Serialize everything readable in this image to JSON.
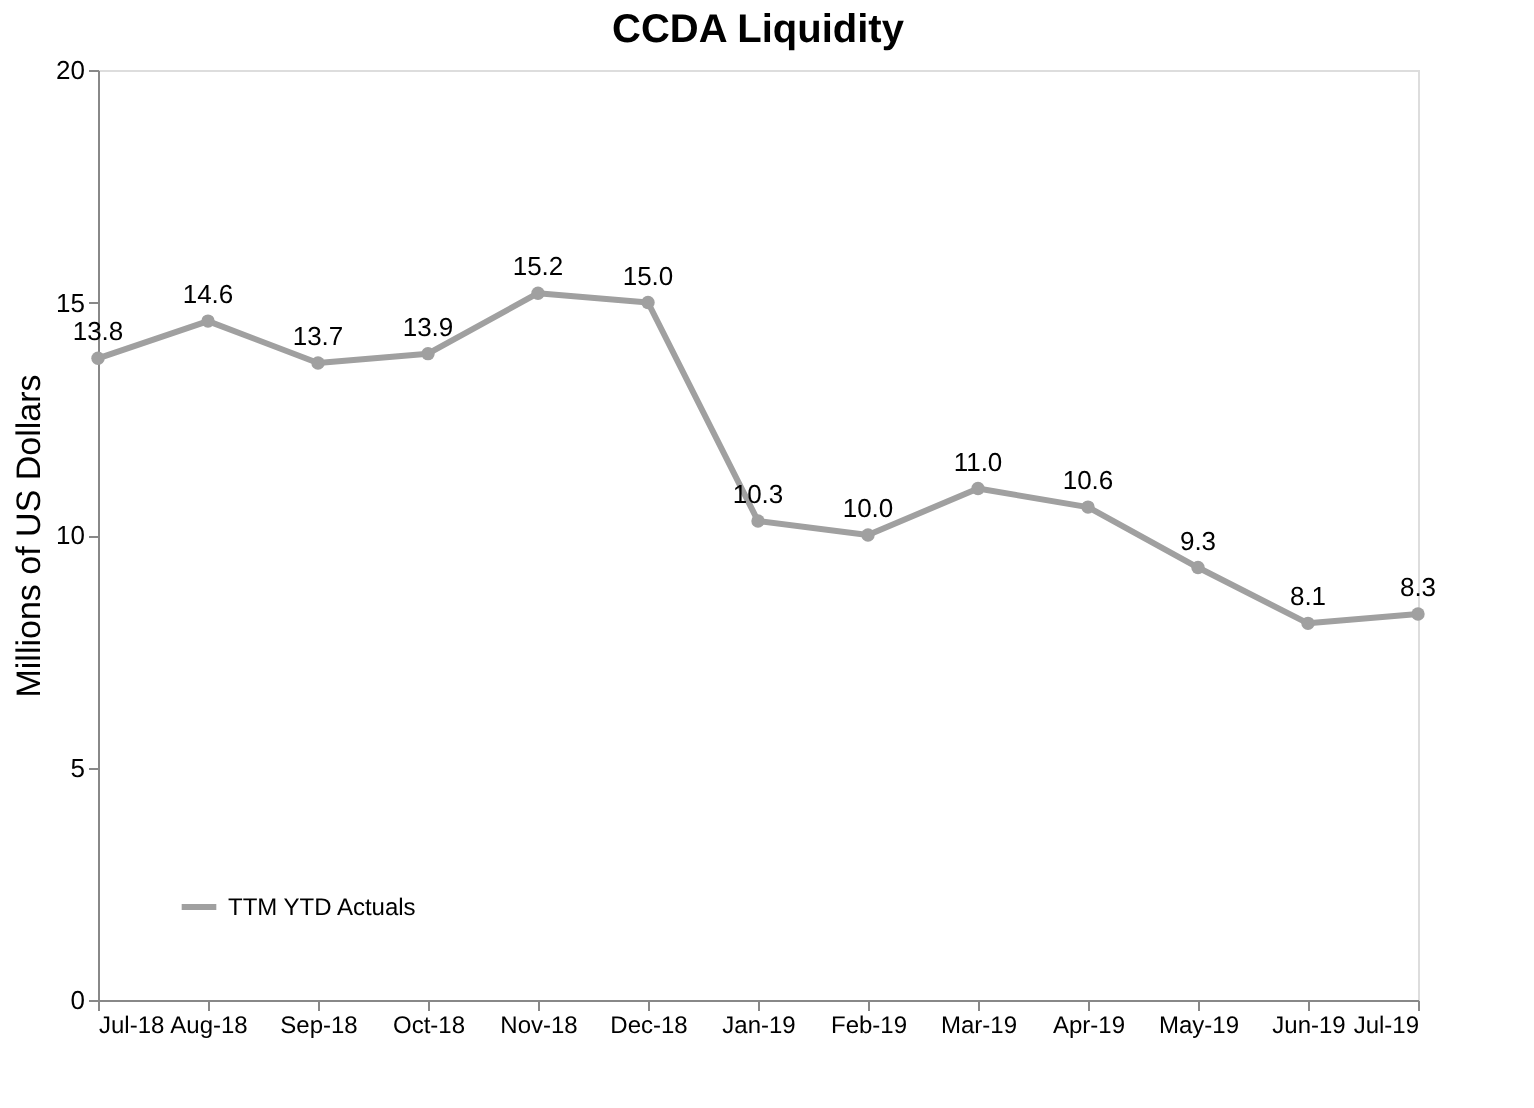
{
  "chart_data": {
    "type": "line",
    "title": "CCDA Liquidity",
    "ylabel": "Millions of US Dollars",
    "categories": [
      "Jul-18",
      "Aug-18",
      "Sep-18",
      "Oct-18",
      "Nov-18",
      "Dec-18",
      "Jan-19",
      "Feb-19",
      "Mar-19",
      "Apr-19",
      "May-19",
      "Jun-19",
      "Jul-19"
    ],
    "series": [
      {
        "name": "TTM YTD Actuals",
        "color": "#a0a0a0",
        "values": [
          13.8,
          14.6,
          13.7,
          13.9,
          15.2,
          15.0,
          10.3,
          10.0,
          11.0,
          10.6,
          9.3,
          8.1,
          8.3
        ],
        "value_labels": [
          "13.8",
          "14.6",
          "13.7",
          "13.9",
          "15.2",
          "15.0",
          "10.3",
          "10.0",
          "11.0",
          "10.6",
          "9.3",
          "8.1",
          "8.3"
        ]
      }
    ],
    "ylim": [
      0,
      20
    ],
    "yticks": [
      0,
      5,
      10,
      15,
      20
    ],
    "grid": false,
    "legend": "bottom left",
    "marker": "circle",
    "line_style": "solid"
  }
}
